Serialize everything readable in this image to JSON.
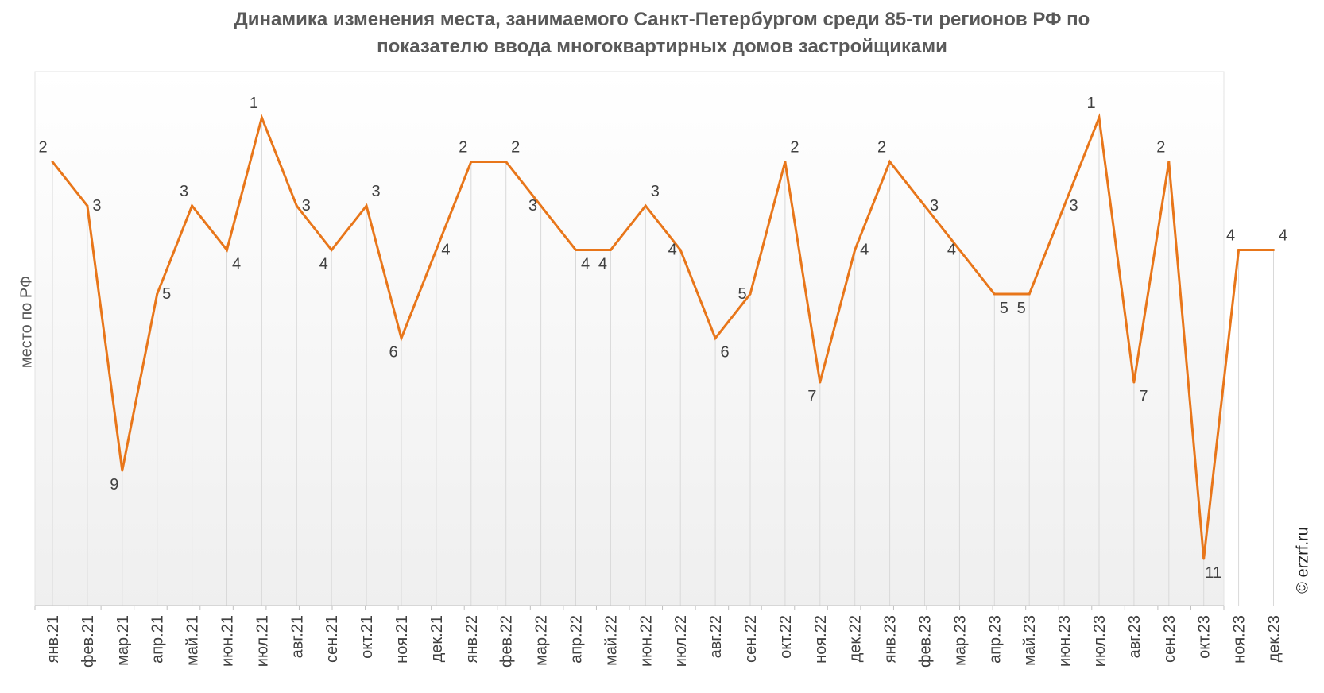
{
  "title": {
    "line1": "Динамика изменения места, занимаемого Санкт-Петербургом среди 85-ти регионов РФ по",
    "line2": "показателю ввода многоквартирных домов застройщиками"
  },
  "copyright": "© erzrf.ru",
  "colors": {
    "line": "#E8761A",
    "grid": "#d9d9d9",
    "text": "#404040"
  },
  "chart_data": {
    "type": "line",
    "ylabel": "место по РФ",
    "y_reversed": true,
    "ylim": [
      1,
      12
    ],
    "grid": "vertical",
    "categories": [
      "янв.21",
      "фев.21",
      "мар.21",
      "апр.21",
      "май.21",
      "июн.21",
      "июл.21",
      "авг.21",
      "сен.21",
      "окт.21",
      "ноя.21",
      "дек.21",
      "янв.22",
      "фев.22",
      "мар.22",
      "апр.22",
      "май.22",
      "июн.22",
      "июл.22",
      "авг.22",
      "сен.22",
      "окт.22",
      "ноя.22",
      "дек.22",
      "янв.23",
      "фев.23",
      "мар.23",
      "апр.23",
      "май.23",
      "июн.23",
      "июл.23",
      "авг.23",
      "сен.23",
      "окт.23",
      "ноя.23",
      "дек.23"
    ],
    "values": [
      2,
      3,
      9,
      5,
      3,
      4,
      1,
      3,
      4,
      3,
      6,
      4,
      2,
      2,
      3,
      4,
      4,
      3,
      4,
      6,
      5,
      2,
      7,
      4,
      2,
      3,
      4,
      5,
      5,
      3,
      1,
      7,
      2,
      11,
      4,
      4
    ],
    "labels": [
      "2",
      "3",
      "9",
      "5",
      "3",
      "4",
      "1",
      "3",
      "4",
      "3",
      "6",
      "4",
      "2",
      "2",
      "3",
      "4",
      "4",
      "3",
      "4",
      "6",
      "5",
      "2",
      "7",
      "4",
      "2",
      "3",
      "4",
      "5",
      "5",
      "3",
      "1",
      "7",
      "2",
      "11",
      "4",
      "4"
    ]
  }
}
